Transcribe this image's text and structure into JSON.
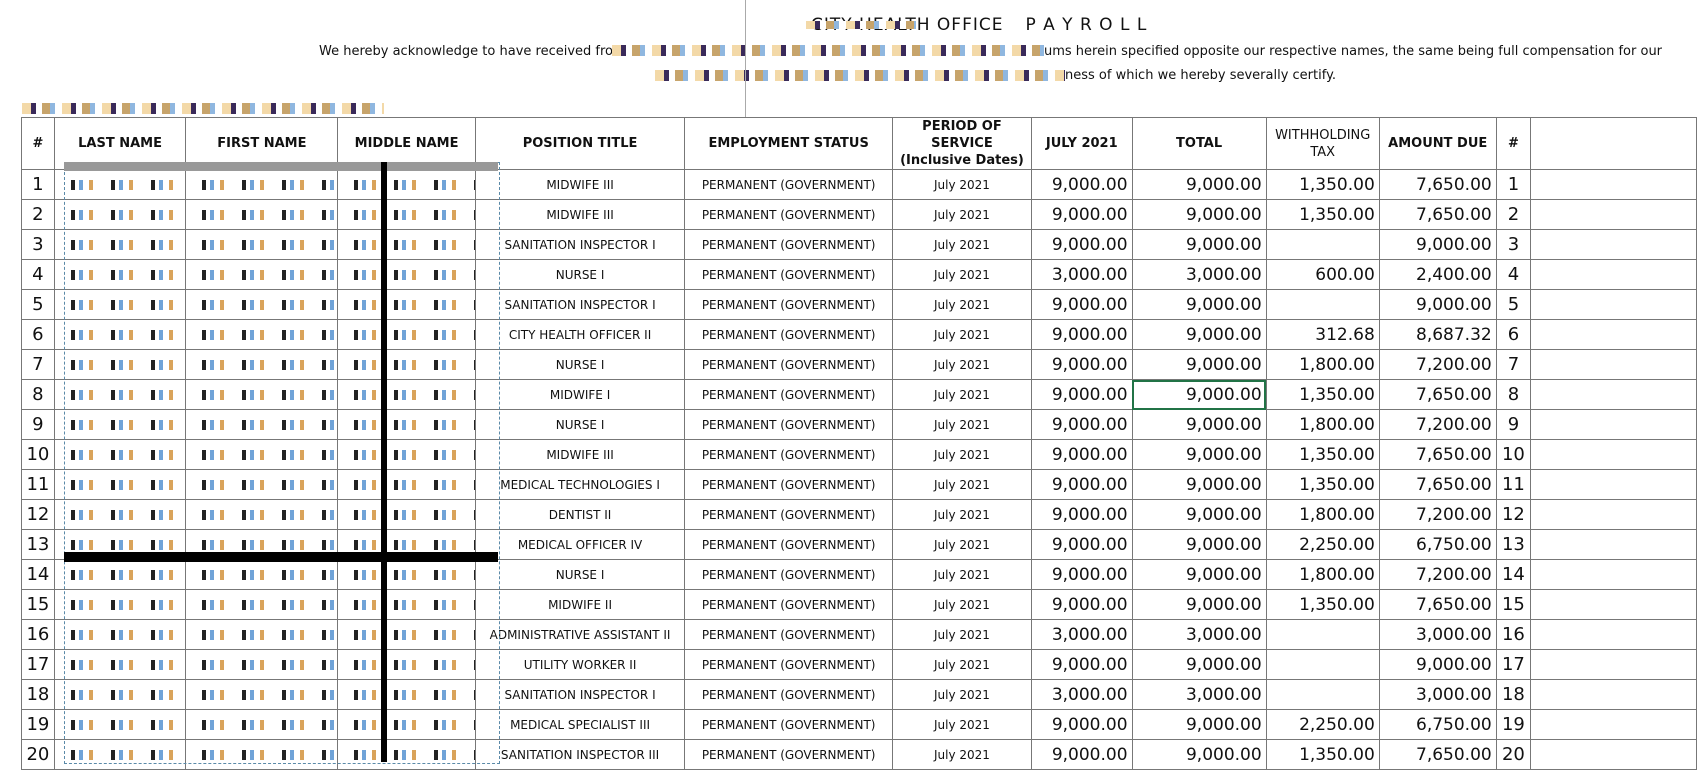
{
  "header": {
    "title_left": "CITY HEALTH OFFICE",
    "title_right": "P A Y R O L L",
    "ack_line_1_start": "We hereby acknowledge to have received from",
    "ack_line_1_end": "ums herein specified opposite our respective names, the same being full compensation for our",
    "ack_line_2_end": "ness of which we hereby severally certify."
  },
  "table": {
    "columns": [
      "#",
      "LAST NAME",
      "FIRST NAME",
      "MIDDLE NAME",
      "POSITION TITLE",
      "EMPLOYMENT STATUS",
      "PERIOD OF SERVICE\n(Inclusive Dates)",
      "JULY 2021",
      "TOTAL",
      "WITHHOLDING\nTAX",
      "AMOUNT DUE",
      "#"
    ],
    "rows": [
      [
        "1",
        "MIDWIFE III",
        "PERMANENT (GOVERNMENT)",
        "July 2021",
        "9,000.00",
        "9,000.00",
        "1,350.00",
        "7,650.00",
        "1"
      ],
      [
        "2",
        "MIDWIFE III",
        "PERMANENT (GOVERNMENT)",
        "July 2021",
        "9,000.00",
        "9,000.00",
        "1,350.00",
        "7,650.00",
        "2"
      ],
      [
        "3",
        "SANITATION INSPECTOR I",
        "PERMANENT (GOVERNMENT)",
        "July 2021",
        "9,000.00",
        "9,000.00",
        null,
        "9,000.00",
        "3"
      ],
      [
        "4",
        "NURSE I",
        "PERMANENT (GOVERNMENT)",
        "July 2021",
        "3,000.00",
        "3,000.00",
        "600.00",
        "2,400.00",
        "4"
      ],
      [
        "5",
        "SANITATION INSPECTOR I",
        "PERMANENT (GOVERNMENT)",
        "July 2021",
        "9,000.00",
        "9,000.00",
        null,
        "9,000.00",
        "5"
      ],
      [
        "6",
        "CITY HEALTH OFFICER II",
        "PERMANENT (GOVERNMENT)",
        "July 2021",
        "9,000.00",
        "9,000.00",
        "312.68",
        "8,687.32",
        "6"
      ],
      [
        "7",
        "NURSE I",
        "PERMANENT (GOVERNMENT)",
        "July 2021",
        "9,000.00",
        "9,000.00",
        "1,800.00",
        "7,200.00",
        "7"
      ],
      [
        "8",
        "MIDWIFE I",
        "PERMANENT (GOVERNMENT)",
        "July 2021",
        "9,000.00",
        "9,000.00",
        "1,350.00",
        "7,650.00",
        "8"
      ],
      [
        "9",
        "NURSE I",
        "PERMANENT (GOVERNMENT)",
        "July 2021",
        "9,000.00",
        "9,000.00",
        "1,800.00",
        "7,200.00",
        "9"
      ],
      [
        "10",
        "MIDWIFE III",
        "PERMANENT (GOVERNMENT)",
        "July 2021",
        "9,000.00",
        "9,000.00",
        "1,350.00",
        "7,650.00",
        "10"
      ],
      [
        "11",
        "MEDICAL TECHNOLOGIES I",
        "PERMANENT (GOVERNMENT)",
        "July 2021",
        "9,000.00",
        "9,000.00",
        "1,350.00",
        "7,650.00",
        "11"
      ],
      [
        "12",
        "DENTIST II",
        "PERMANENT (GOVERNMENT)",
        "July 2021",
        "9,000.00",
        "9,000.00",
        "1,800.00",
        "7,200.00",
        "12"
      ],
      [
        "13",
        "MEDICAL OFFICER IV",
        "PERMANENT (GOVERNMENT)",
        "July 2021",
        "9,000.00",
        "9,000.00",
        "2,250.00",
        "6,750.00",
        "13"
      ],
      [
        "14",
        "NURSE I",
        "PERMANENT (GOVERNMENT)",
        "July 2021",
        "9,000.00",
        "9,000.00",
        "1,800.00",
        "7,200.00",
        "14"
      ],
      [
        "15",
        "MIDWIFE II",
        "PERMANENT (GOVERNMENT)",
        "July 2021",
        "9,000.00",
        "9,000.00",
        "1,350.00",
        "7,650.00",
        "15"
      ],
      [
        "16",
        "ADMINISTRATIVE ASSISTANT II",
        "PERMANENT (GOVERNMENT)",
        "July 2021",
        "3,000.00",
        "3,000.00",
        null,
        "3,000.00",
        "16"
      ],
      [
        "17",
        "UTILITY WORKER II",
        "PERMANENT (GOVERNMENT)",
        "July 2021",
        "9,000.00",
        "9,000.00",
        null,
        "9,000.00",
        "17"
      ],
      [
        "18",
        "SANITATION INSPECTOR I",
        "PERMANENT (GOVERNMENT)",
        "July 2021",
        "3,000.00",
        "3,000.00",
        null,
        "3,000.00",
        "18"
      ],
      [
        "19",
        "MEDICAL SPECIALIST III",
        "PERMANENT (GOVERNMENT)",
        "July 2021",
        "9,000.00",
        "9,000.00",
        "2,250.00",
        "6,750.00",
        "19"
      ],
      [
        "20",
        "SANITATION INSPECTOR III",
        "PERMANENT (GOVERNMENT)",
        "July 2021",
        "9,000.00",
        "9,000.00",
        "1,350.00",
        "7,650.00",
        "20"
      ]
    ]
  }
}
